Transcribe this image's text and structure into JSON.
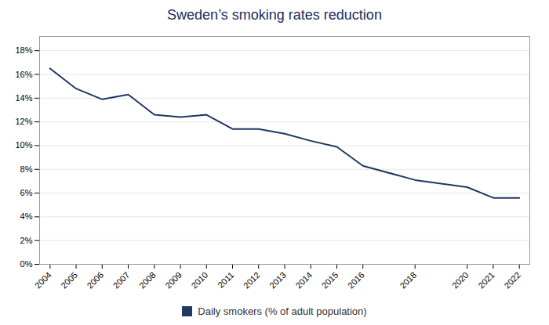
{
  "chart_data": {
    "type": "line",
    "title": "Sweden’s smoking rates reduction",
    "x": [
      2004,
      2005,
      2006,
      2007,
      2008,
      2009,
      2010,
      2011,
      2012,
      2013,
      2014,
      2015,
      2016,
      2018,
      2020,
      2021,
      2022
    ],
    "series": [
      {
        "name": "Daily smokers (% of adult population)",
        "color": "#1f3864",
        "values": [
          0.165,
          0.148,
          0.139,
          0.143,
          0.126,
          0.124,
          0.126,
          0.114,
          0.114,
          0.11,
          0.104,
          0.099,
          0.083,
          0.071,
          0.065,
          0.056,
          0.056
        ]
      }
    ],
    "xlim": [
      2003.6,
      2022.4
    ],
    "xticks": [
      2004,
      2005,
      2006,
      2007,
      2008,
      2009,
      2010,
      2011,
      2012,
      2013,
      2014,
      2015,
      2016,
      2018,
      2020,
      2021,
      2022
    ],
    "ylim": [
      0,
      0.192
    ],
    "yticks": [
      {
        "value": 0,
        "label": "0%"
      },
      {
        "value": 0.02,
        "label": "2%"
      },
      {
        "value": 0.04,
        "label": "4%"
      },
      {
        "value": 0.06,
        "label": "6%"
      },
      {
        "value": 0.08,
        "label": "8%"
      },
      {
        "value": 0.1,
        "label": "10%"
      },
      {
        "value": 0.12,
        "label": "12%"
      },
      {
        "value": 0.14,
        "label": "14%"
      },
      {
        "value": 0.16,
        "label": "16%"
      },
      {
        "value": 0.18,
        "label": "18%"
      }
    ],
    "grid": "y",
    "legend": "bottom"
  }
}
